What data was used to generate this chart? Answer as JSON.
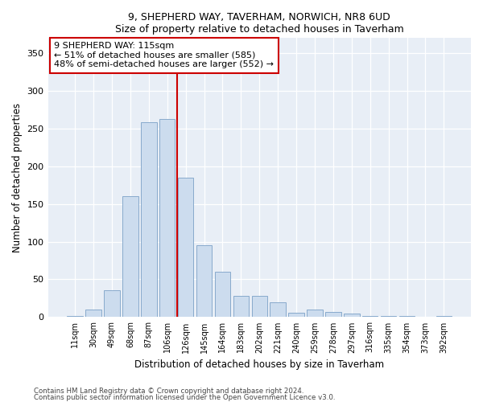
{
  "title1": "9, SHEPHERD WAY, TAVERHAM, NORWICH, NR8 6UD",
  "title2": "Size of property relative to detached houses in Taverham",
  "xlabel": "Distribution of detached houses by size in Taverham",
  "ylabel": "Number of detached properties",
  "categories": [
    "11sqm",
    "30sqm",
    "49sqm",
    "68sqm",
    "87sqm",
    "106sqm",
    "126sqm",
    "145sqm",
    "164sqm",
    "183sqm",
    "202sqm",
    "221sqm",
    "240sqm",
    "259sqm",
    "278sqm",
    "297sqm",
    "316sqm",
    "335sqm",
    "354sqm",
    "373sqm",
    "392sqm"
  ],
  "values": [
    2,
    10,
    36,
    160,
    258,
    262,
    185,
    95,
    60,
    28,
    28,
    20,
    6,
    10,
    7,
    5,
    2,
    2,
    1,
    0,
    2
  ],
  "bar_color": "#ccdcee",
  "bar_edge_color": "#88aacc",
  "vline_x": 5.55,
  "vline_color": "#cc0000",
  "annotation_text": "9 SHEPHERD WAY: 115sqm\n← 51% of detached houses are smaller (585)\n48% of semi-detached houses are larger (552) →",
  "annotation_box_color": "#ffffff",
  "annotation_box_edge": "#cc0000",
  "ylim": [
    0,
    370
  ],
  "yticks": [
    0,
    50,
    100,
    150,
    200,
    250,
    300,
    350
  ],
  "footer1": "Contains HM Land Registry data © Crown copyright and database right 2024.",
  "footer2": "Contains public sector information licensed under the Open Government Licence v3.0.",
  "bg_color": "#ffffff",
  "plot_bg_color": "#e8eef6"
}
